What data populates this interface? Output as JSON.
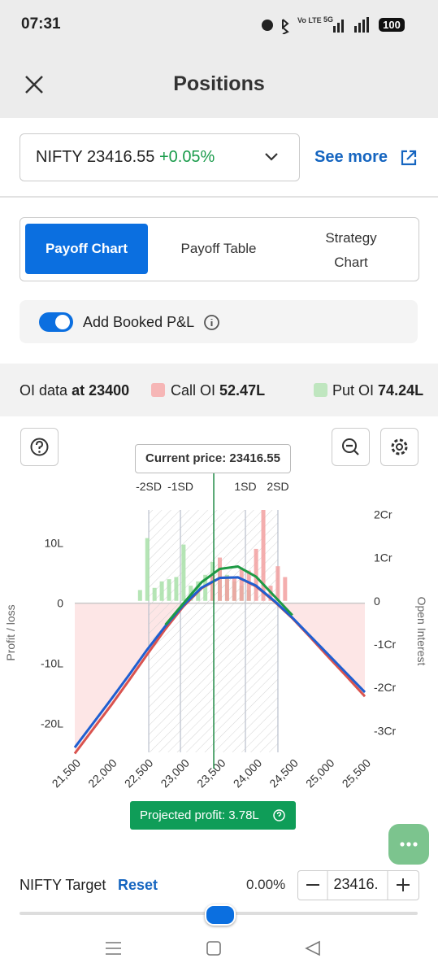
{
  "status_bar": {
    "time": "07:31",
    "network": "Vo LTE",
    "signal": "5G",
    "battery": "100"
  },
  "header": {
    "title": "Positions"
  },
  "instrument": {
    "label": "NIFTY 23416.55",
    "change": "+0.05%",
    "link": "See more"
  },
  "tabs": [
    "Payoff Chart",
    "Payoff Table",
    "Strategy Chart"
  ],
  "toggle": {
    "label": "Add Booked P&L"
  },
  "oi_summary": {
    "label": "OI data",
    "strike": "at 23400",
    "call_label": "Call OI",
    "call_value": "52.47L",
    "put_label": "Put OI",
    "put_value": "74.24L"
  },
  "chart_data": {
    "type": "line",
    "current_price_label": "Current price: 23416.55",
    "current_price": 23416.55,
    "sd_levels": [
      {
        "label": "-2SD",
        "value": 22520
      },
      {
        "label": "-1SD",
        "value": 22957
      },
      {
        "label": "1SD",
        "value": 23853
      },
      {
        "label": "2SD",
        "value": 24301
      }
    ],
    "y_label": "Profit / loss",
    "y2_label": "Open Interest",
    "xlim": [
      21500,
      25500
    ],
    "xticks": [
      {
        "value": 21500,
        "label": "21,500"
      },
      {
        "value": 22000,
        "label": "22,000"
      },
      {
        "value": 22500,
        "label": "22,500"
      },
      {
        "value": 23000,
        "label": "23,000"
      },
      {
        "value": 23500,
        "label": "23,500"
      },
      {
        "value": 24000,
        "label": "24,000"
      },
      {
        "value": 24500,
        "label": "24,500"
      },
      {
        "value": 25000,
        "label": "25,000"
      },
      {
        "value": 25500,
        "label": "25,500"
      }
    ],
    "ylim": [
      -24.8,
      15.5
    ],
    "yticks": [
      {
        "value": 10,
        "label": "10L"
      },
      0,
      {
        "value": -10,
        "label": "-10L"
      },
      {
        "value": -20,
        "label": "-20L"
      }
    ],
    "y2lim": [
      -3.5,
      2.1
    ],
    "y2ticks": [
      {
        "value": 2,
        "label": "2Cr"
      },
      {
        "value": 1,
        "label": "1Cr"
      },
      0,
      {
        "value": -1,
        "label": "-1Cr"
      },
      {
        "value": -2,
        "label": "-2Cr"
      },
      {
        "value": -3,
        "label": "-3Cr"
      }
    ],
    "loss_fill": "#fde6e6",
    "x": [
      21500,
      21750,
      22000,
      22250,
      22500,
      22750,
      23000,
      23250,
      23500,
      23750,
      24000,
      24250,
      24500,
      24750,
      25000,
      25250,
      25500
    ],
    "series": [
      {
        "type": "bar",
        "axis": "y2",
        "color": "#a8e0a8",
        "x": [
          22400,
          22500,
          22600,
          22700,
          22800,
          22900,
          23000,
          23100,
          23200,
          23300,
          23400,
          23500,
          23600,
          23700,
          23800,
          23900
        ],
        "values": [
          0.25,
          1.45,
          0.3,
          0.45,
          0.5,
          0.55,
          1.3,
          0.35,
          0.45,
          0.6,
          0.9,
          0.75,
          0.6,
          0.45,
          0.35,
          0.25
        ]
      },
      {
        "type": "bar",
        "axis": "y2",
        "color": "#f2a0a0",
        "x": [
          23400,
          23500,
          23600,
          23700,
          23800,
          23900,
          24000,
          24100,
          24200,
          24300,
          24400
        ],
        "values": [
          0.6,
          1.0,
          0.5,
          0.55,
          0.75,
          0.7,
          1.2,
          2.1,
          0.35,
          0.8,
          0.55
        ]
      },
      {
        "type": "line",
        "color": "#d9534f",
        "values": [
          -25,
          -21,
          -17,
          -12.8,
          -8.5,
          -4.3,
          -0.5,
          2.5,
          4.2,
          4.3,
          2.8,
          0.3,
          -2.5,
          -5.7,
          -9,
          -12.2,
          -15.5
        ]
      },
      {
        "type": "line",
        "color": "#1f5fd1",
        "values": [
          -24,
          -20,
          -16,
          -11.9,
          -7.7,
          -3.8,
          -0.3,
          2.6,
          4.2,
          4.3,
          2.9,
          0.4,
          -2.4,
          -5.5,
          -8.6,
          -11.7,
          -14.8
        ]
      },
      {
        "type": "line",
        "color": "#1e9a45",
        "values": [
          null,
          null,
          null,
          null,
          null,
          -3.6,
          0,
          3.5,
          5.7,
          6.1,
          4.4,
          1.2,
          -2.0,
          null,
          null,
          null,
          null
        ]
      }
    ]
  },
  "projected": "Projected profit: 3.78L",
  "target": {
    "label": "NIFTY Target",
    "reset": "Reset",
    "change": "0.00%",
    "input": "23416."
  }
}
